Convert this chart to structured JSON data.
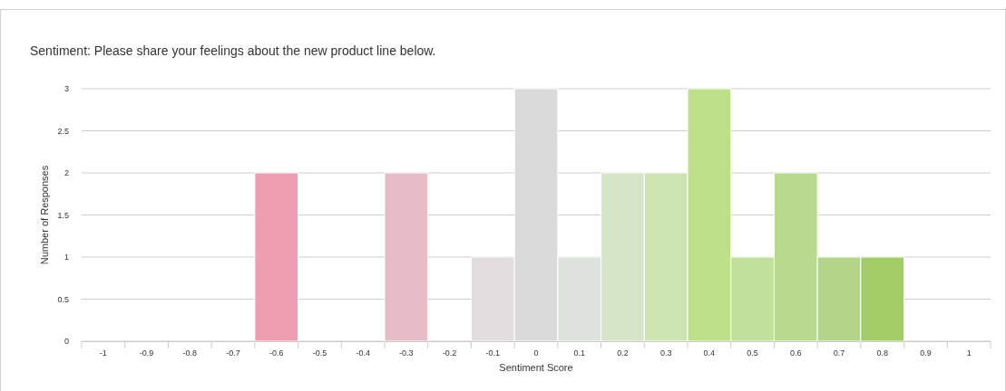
{
  "chart_data": {
    "type": "bar",
    "title": "Sentiment: Please share your feelings about the new product line below.",
    "xlabel": "Sentiment Score",
    "ylabel": "Number of Responses",
    "categories": [
      "-1",
      "-0.9",
      "-0.8",
      "-0.7",
      "-0.6",
      "-0.5",
      "-0.4",
      "-0.3",
      "-0.2",
      "-0.1",
      "0",
      "0.1",
      "0.2",
      "0.3",
      "0.4",
      "0.5",
      "0.6",
      "0.7",
      "0.8",
      "0.9",
      "1"
    ],
    "values": [
      0,
      0,
      0,
      0,
      2,
      0,
      0,
      2,
      0,
      1,
      3,
      1,
      2,
      2,
      3,
      1,
      2,
      1,
      1,
      0,
      0
    ],
    "colors": [
      null,
      null,
      null,
      null,
      "#ef9db0",
      null,
      null,
      "#e6bcc6",
      null,
      "#e3dde0",
      "#dadada",
      "#dde3dc",
      "#d6e5c8",
      "#cce4b2",
      "#bfe08a",
      "#c2df9c",
      "#b9d98f",
      "#b3d48a",
      "#a2cc66",
      null,
      null
    ],
    "ylim": [
      0,
      3
    ],
    "yticks": [
      0,
      0.5,
      1,
      1.5,
      2,
      2.5,
      3
    ],
    "grid": "y"
  }
}
